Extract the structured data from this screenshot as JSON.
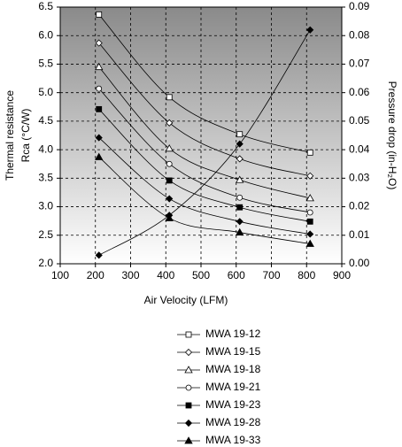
{
  "chart_data": {
    "type": "line",
    "xlabel": "Air Velocity (LFM)",
    "ylabel": [
      "Thermal resistance",
      "Rca (°C/W)"
    ],
    "y2label": "Pressure drop (in-H₂O)",
    "x": [
      210,
      410,
      610,
      810
    ],
    "xlim": [
      100,
      900
    ],
    "xticks": [
      100,
      200,
      300,
      400,
      500,
      600,
      700,
      800,
      900
    ],
    "ylim": [
      2,
      6.5
    ],
    "yticks": [
      {
        "value": 2,
        "label": "2.0"
      },
      2.5,
      {
        "value": 3,
        "label": "3.0"
      },
      3.5,
      {
        "value": 4,
        "label": "4.0"
      },
      4.5,
      {
        "value": 5,
        "label": "5.0"
      },
      5.5,
      {
        "value": 6,
        "label": "6.0"
      },
      6.5
    ],
    "y2lim": [
      0,
      0.09
    ],
    "y2ticks": [
      {
        "value": 0,
        "label": "0.00"
      },
      0.01,
      0.02,
      0.03,
      0.04,
      0.05,
      0.06,
      0.07,
      0.08,
      0.09
    ],
    "grid": true,
    "series": [
      {
        "name": "MWA 19-12",
        "color": "#000000",
        "marker": "square",
        "filled": false,
        "values": [
          6.37,
          4.92,
          4.27,
          3.95
        ]
      },
      {
        "name": "MWA 19-15",
        "color": "#000000",
        "marker": "diamond",
        "filled": false,
        "values": [
          5.87,
          4.47,
          3.84,
          3.54
        ]
      },
      {
        "name": "MWA 19-18",
        "color": "#000000",
        "marker": "triangle",
        "filled": false,
        "values": [
          5.45,
          4.02,
          3.47,
          3.15
        ]
      },
      {
        "name": "MWA 19-21",
        "color": "#000000",
        "marker": "circle",
        "filled": false,
        "values": [
          5.07,
          3.75,
          3.16,
          2.9
        ]
      },
      {
        "name": "MWA 19-23",
        "color": "#000000",
        "marker": "square",
        "filled": true,
        "values": [
          4.71,
          3.46,
          2.99,
          2.74
        ]
      },
      {
        "name": "MWA 19-28",
        "color": "#000000",
        "marker": "diamond",
        "filled": true,
        "values": [
          4.21,
          3.14,
          2.74,
          2.52
        ]
      },
      {
        "name": "MWA 19-33",
        "color": "#000000",
        "marker": "triangle",
        "filled": true,
        "values": [
          3.87,
          2.8,
          2.55,
          2.35
        ]
      },
      {
        "axis": "y2",
        "color": "#000000",
        "marker": "diamond",
        "filled": true,
        "values": [
          0.003,
          0.017,
          0.042,
          0.082
        ]
      }
    ]
  }
}
